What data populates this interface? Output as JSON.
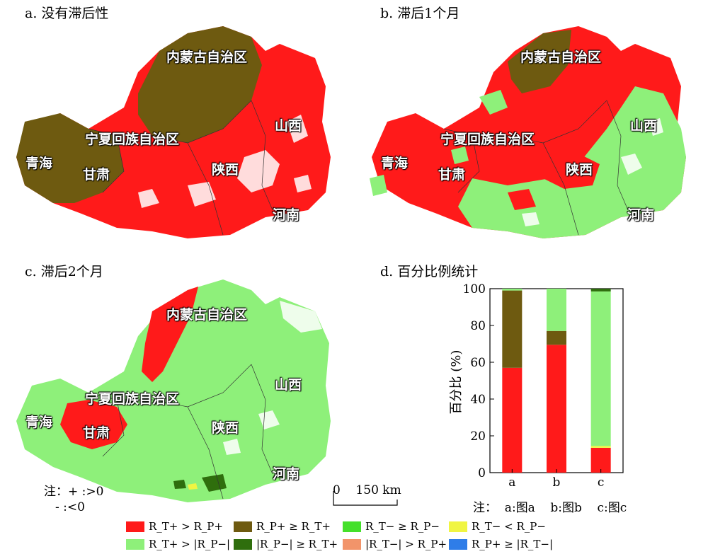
{
  "panels": {
    "a": {
      "title": "a. 没有滞后性"
    },
    "b": {
      "title": "b. 滞后1个月"
    },
    "c": {
      "title": "c. 滞后2个月"
    },
    "d": {
      "title": "d. 百分比例统计"
    }
  },
  "regions": {
    "neimenggu": "内蒙古自治区",
    "shanxi": "山西",
    "ningxia": "宁夏回族自治区",
    "qinghai": "青海",
    "gansu": "甘肃",
    "shaanxi": "陕西",
    "henan": "河南"
  },
  "note_sign": {
    "line1": "注：+ :>0",
    "line2": "- :<0"
  },
  "scale": {
    "label": "0    150 km"
  },
  "chart_note": "注：  a:图a    b:图b    c:图c",
  "colors": {
    "rt_pos_gt_rp_pos": "#ff1a1a",
    "rp_pos_ge_rt_pos": "#6e5a10",
    "rt_neg_ge_rp_neg": "#44e02a",
    "rt_neg_lt_rp_neg": "#f0f542",
    "rt_pos_gt_abs_rp_neg": "#8ef07a",
    "abs_rp_neg_ge_rt_pos": "#2f6e0d",
    "abs_rt_neg_gt_rp_pos": "#f2946a",
    "rp_pos_ge_abs_rt_neg": "#2f7de8"
  },
  "legend": [
    {
      "label": "R_T+ > R_P+",
      "color": "#ff1a1a"
    },
    {
      "label": "R_P+ ≥ R_T+",
      "color": "#6e5a10"
    },
    {
      "label": "R_T− ≥ R_P−",
      "color": "#44e02a"
    },
    {
      "label": "R_T− < R_P−",
      "color": "#f0f542"
    },
    {
      "label": "R_T+ > |R_P−|",
      "color": "#8ef07a"
    },
    {
      "label": "|R_P−| ≥ R_T+",
      "color": "#2f6e0d"
    },
    {
      "label": "|R_T−| > R_P+",
      "color": "#f2946a"
    },
    {
      "label": "R_P+ ≥ |R_T−|",
      "color": "#2f7de8"
    }
  ],
  "chart_data": {
    "type": "bar",
    "stacked": true,
    "categories": [
      "a",
      "b",
      "c"
    ],
    "ylabel": "百分比 (%)",
    "ylim": [
      0,
      100
    ],
    "yticks": [
      "0",
      "20",
      "40",
      "60",
      "80",
      "100"
    ],
    "series": [
      {
        "color": "#ff1a1a",
        "values": [
          57,
          69.5,
          13.5
        ]
      },
      {
        "color": "#f0f542",
        "values": [
          0,
          0,
          1
        ]
      },
      {
        "color": "#6e5a10",
        "values": [
          42,
          7.5,
          0
        ]
      },
      {
        "color": "#8ef07a",
        "values": [
          1,
          23,
          84
        ]
      },
      {
        "color": "#2f6e0d",
        "values": [
          0,
          0,
          1.5
        ]
      }
    ]
  }
}
